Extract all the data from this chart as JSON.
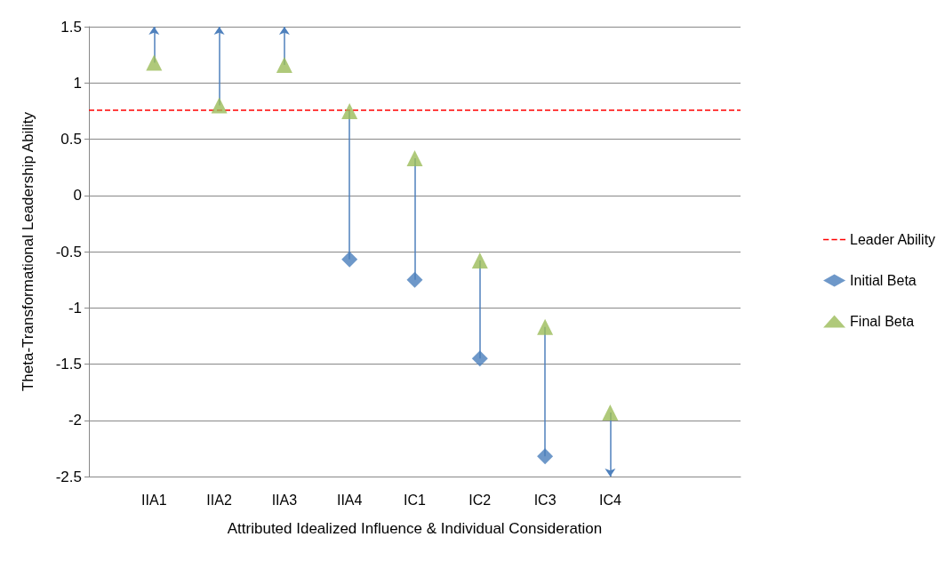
{
  "chart_data": {
    "type": "scatter",
    "xlabel": "Attributed Idealized Influence & Individual Consideration",
    "ylabel": "Theta-Transformational Leadership Ability",
    "categories": [
      null,
      "IIA1",
      "IIA2",
      "IIA3",
      "IIA4",
      "IC1",
      "IC2",
      "IC3",
      "IC4",
      null,
      null
    ],
    "series": [
      {
        "name": "Initial Beta",
        "color": "#4a7ebb",
        "marker": "diamond",
        "values": [
          null,
          null,
          null,
          null,
          -0.57,
          -0.75,
          -1.45,
          -2.32,
          null,
          null,
          null
        ]
      },
      {
        "name": "Final Beta",
        "color": "#9bbb59",
        "marker": "triangle",
        "values": [
          null,
          1.18,
          0.8,
          1.16,
          0.75,
          0.33,
          -0.58,
          -1.17,
          -1.93,
          null,
          null
        ]
      }
    ],
    "ref_lines": [
      {
        "axis": "y",
        "value": 0.76,
        "label": "Leader Ability",
        "color": "#ff0000",
        "line_style": "dashed"
      }
    ],
    "ylim": [
      -2.5,
      1.5
    ],
    "yticks": [
      -2.5,
      -2,
      -1.5,
      -1,
      -0.5,
      0,
      0.5,
      1,
      1.5
    ],
    "grid": "y",
    "legend": "right"
  }
}
